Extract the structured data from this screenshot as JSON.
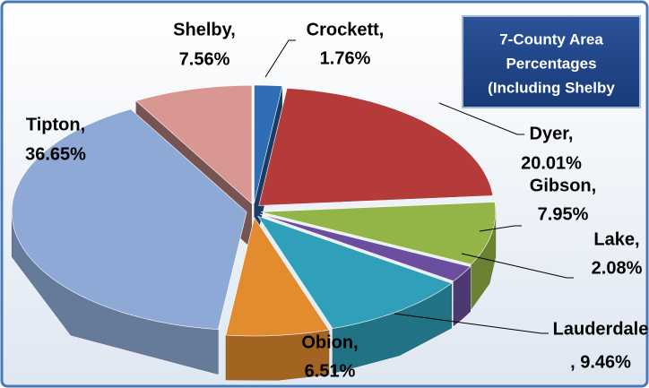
{
  "chart_data": {
    "type": "pie",
    "title": [
      "7-County Area",
      "Percentages",
      "(Including Shelby"
    ],
    "categories": [
      "Crockett,",
      "Dyer,",
      "Gibson,",
      "Lake,",
      "Lauderdale",
      "Obion,",
      "Tipton,",
      "Shelby,"
    ],
    "values": [
      1.76,
      20.01,
      7.95,
      2.08,
      9.46,
      6.51,
      36.65,
      7.56
    ],
    "value_labels": [
      "1.76%",
      "20.01%",
      "7.95%",
      "2.08%",
      ", 9.46%",
      "6.51%",
      "36.65%",
      "7.56%"
    ],
    "colors": [
      "#2f6db5",
      "#b53b3b",
      "#93b446",
      "#6b4f9e",
      "#2f9fba",
      "#e28b2f",
      "#8ea9d6",
      "#d99794"
    ]
  }
}
